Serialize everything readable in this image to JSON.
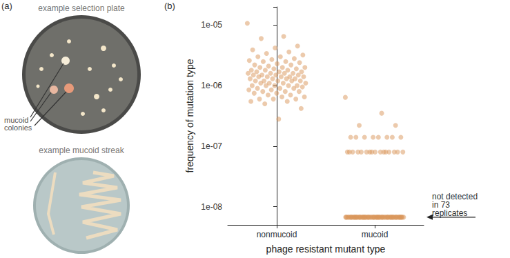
{
  "panel_a": {
    "label": "(a)",
    "top_title": "example selection plate",
    "arrow_label": "mucoid colonies",
    "bottom_title": "example mucoid streak"
  },
  "chart_data": {
    "type": "scatter",
    "panel_label": "(b)",
    "x_label": "phage resistant mutant type",
    "y_label": "frequency of mutation type",
    "categories": [
      "nonmucoid",
      "mucoid"
    ],
    "values": [
      [
        1.07e-05,
        6.5e-06,
        6e-06,
        4.5e-06,
        4.2e-06,
        3.9e-06,
        3.6e-06,
        3.4e-06,
        3.2e-06,
        3e-06,
        3e-06,
        2.8e-06,
        2.7e-06,
        2.6e-06,
        2.5e-06,
        2.5e-06,
        2.4e-06,
        2.3e-06,
        2.2e-06,
        2.2e-06,
        2.1e-06,
        2e-06,
        2e-06,
        2e-06,
        1.9e-06,
        1.9e-06,
        1.8e-06,
        1.8e-06,
        1.8e-06,
        1.7e-06,
        1.7e-06,
        1.7e-06,
        1.6e-06,
        1.6e-06,
        1.6e-06,
        1.6e-06,
        1.5e-06,
        1.5e-06,
        1.5e-06,
        1.5e-06,
        1.4e-06,
        1.4e-06,
        1.4e-06,
        1.4e-06,
        1.4e-06,
        1.3e-06,
        1.3e-06,
        1.3e-06,
        1.3e-06,
        1.2e-06,
        1.2e-06,
        1.2e-06,
        1.2e-06,
        1.2e-06,
        1.1e-06,
        1.1e-06,
        1.1e-06,
        1.1e-06,
        1e-06,
        1e-06,
        1e-06,
        1e-06,
        1e-06,
        9.5e-07,
        9e-07,
        9e-07,
        9e-07,
        8.5e-07,
        8.5e-07,
        8e-07,
        8e-07,
        8e-07,
        7.5e-07,
        7.5e-07,
        7e-07,
        7e-07,
        6.5e-07,
        6.5e-07,
        6e-07,
        6e-07,
        6e-07,
        5.5e-07,
        5.5e-07,
        5e-07,
        4.2e-07,
        2.8e-07
      ],
      [
        6.4e-07,
        3.5e-07,
        2.2e-07,
        2.2e-07,
        1.4e-07,
        1.4e-07,
        1.4e-07,
        1.4e-07,
        1.4e-07,
        1.4e-07,
        1.4e-07,
        1.4e-07,
        8e-08,
        8e-08,
        8e-08,
        8e-08,
        8e-08,
        8e-08,
        8e-08,
        8e-08,
        8e-08,
        8e-08,
        8e-08,
        8e-08,
        8e-08,
        8e-08,
        8e-08,
        8e-08,
        6.7e-09,
        6.7e-09,
        6.7e-09,
        6.7e-09,
        6.7e-09,
        6.7e-09,
        6.7e-09,
        6.7e-09,
        6.7e-09,
        6.7e-09,
        6.7e-09,
        6.7e-09,
        6.7e-09,
        6.7e-09,
        6.7e-09,
        6.7e-09,
        6.7e-09,
        6.7e-09,
        6.7e-09,
        6.7e-09,
        6.7e-09,
        6.7e-09,
        6.7e-09,
        6.7e-09,
        6.7e-09,
        6.7e-09,
        6.7e-09,
        6.7e-09,
        6.7e-09,
        6.7e-09,
        6.7e-09,
        6.7e-09,
        6.7e-09,
        6.7e-09,
        6.7e-09,
        6.7e-09,
        6.7e-09,
        6.7e-09,
        6.7e-09,
        6.7e-09,
        6.7e-09,
        6.7e-09,
        6.7e-09,
        6.7e-09,
        6.7e-09,
        6.7e-09,
        6.7e-09,
        6.7e-09,
        6.7e-09,
        6.7e-09,
        6.7e-09,
        6.7e-09,
        6.7e-09,
        6.7e-09,
        6.7e-09,
        6.7e-09,
        6.7e-09,
        6.7e-09,
        6.7e-09,
        6.7e-09,
        6.7e-09,
        6.7e-09,
        6.7e-09,
        6.7e-09,
        6.7e-09,
        6.7e-09,
        6.7e-09,
        6.7e-09,
        6.7e-09,
        6.7e-09,
        6.7e-09,
        6.7e-09,
        6.7e-09
      ]
    ],
    "color": "#d9955a",
    "log": "y",
    "grid": false,
    "ylim": [
      5e-09,
      2e-05
    ],
    "yticks": [
      {
        "value": 1e-08,
        "label": "1e-08"
      },
      {
        "value": 1e-07,
        "label": "1e-07"
      },
      {
        "value": 1e-06,
        "label": "1e-06"
      },
      {
        "value": 1e-05,
        "label": "1e-05"
      }
    ],
    "detection_limit": 8e-08,
    "annotations": [
      {
        "text": "not detected in 73 replicates"
      }
    ]
  }
}
